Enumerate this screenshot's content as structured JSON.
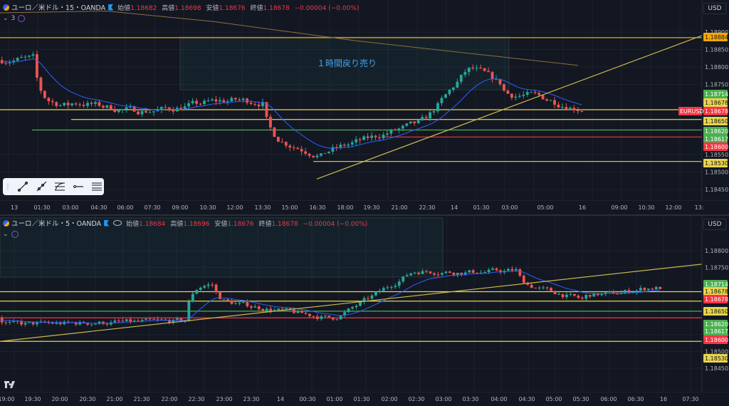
{
  "top_pane": {
    "symbol": "ユーロ／米ドル・15・OANDA",
    "ohlc": [
      {
        "label": "始値",
        "value": "1.18682"
      },
      {
        "label": "高値",
        "value": "1.18698"
      },
      {
        "label": "安値",
        "value": "1.18676"
      },
      {
        "label": "終値",
        "value": "1.18678"
      },
      {
        "label": "",
        "value": "−0.00004 (−0.00%)"
      }
    ],
    "indicator_count": "3",
    "currency": "USD",
    "annotation": "１時間戻り売り",
    "price_ticks": [
      "1.18900",
      "1.18850",
      "1.18800",
      "1.18750",
      "1.18550",
      "1.18500",
      "1.18450"
    ],
    "price_labels": [
      {
        "text": "1.18884",
        "kind": "orange"
      },
      {
        "text": "1.18714",
        "kind": "green"
      },
      {
        "text": "1.18678",
        "kind": "yellow"
      },
      {
        "text": "EURUSD",
        "kind": "red-tag"
      },
      {
        "text": "1.18678",
        "kind": "red"
      },
      {
        "text": "1.18650",
        "kind": "yellow"
      },
      {
        "text": "1.18620",
        "kind": "green"
      },
      {
        "text": "1.18617",
        "kind": "green"
      },
      {
        "text": "1.18600",
        "kind": "red"
      },
      {
        "text": "1.18530",
        "kind": "yellow"
      }
    ],
    "time_ticks": [
      "13",
      "01:30",
      "03:00",
      "04:30",
      "06:00",
      "07:30",
      "09:00",
      "10:30",
      "12:00",
      "13:30",
      "15:00",
      "16:30",
      "18:00",
      "19:30",
      "21:00",
      "22:30",
      "14",
      "01:30",
      "03:00",
      "05:00",
      "16",
      "09:00",
      "10:30",
      "12:00",
      "13:"
    ]
  },
  "bottom_pane": {
    "symbol": "ユーロ／米ドル・5・OANDA",
    "ohlc": [
      {
        "label": "始値",
        "value": "1.18684"
      },
      {
        "label": "高値",
        "value": "1.18696"
      },
      {
        "label": "安値",
        "value": "1.18676"
      },
      {
        "label": "終値",
        "value": "1.18678"
      },
      {
        "label": "",
        "value": "−0.00004 (−0.00%)"
      }
    ],
    "currency": "USD",
    "price_ticks": [
      "1.18800",
      "1.18750",
      "1.18550",
      "1.18500",
      "1.18450"
    ],
    "price_labels": [
      {
        "text": "1.18714",
        "kind": "green"
      },
      {
        "text": "1.18678",
        "kind": "yellow"
      },
      {
        "text": "1.18678",
        "kind": "red"
      },
      {
        "text": "1.18650",
        "kind": "yellow"
      },
      {
        "text": "1.18620",
        "kind": "green"
      },
      {
        "text": "1.18617",
        "kind": "green"
      },
      {
        "text": "1.18600",
        "kind": "red"
      },
      {
        "text": "1.18530",
        "kind": "yellow"
      }
    ],
    "time_ticks": [
      "19:00",
      "19:30",
      "20:00",
      "20:30",
      "21:00",
      "21:30",
      "22:00",
      "22:30",
      "23:00",
      "23:30",
      "14",
      "00:30",
      "01:00",
      "01:30",
      "02:00",
      "02:30",
      "03:00",
      "03:30",
      "04:00",
      "04:30",
      "05:00",
      "05:30",
      "06:00",
      "06:30",
      "16",
      "07:30"
    ]
  },
  "colors": {
    "up": "#26a69a",
    "down": "#ef5350",
    "yellow": "#e8d44d",
    "green": "#4caf50",
    "red": "#f23645",
    "orange": "#f7a600",
    "ma_blue": "#2962ff",
    "ma_brown": "#8d6e3f"
  },
  "drawing_toolbar": [
    "trend-line-icon",
    "ray-icon",
    "fib-retracement-icon",
    "horizontal-ray-icon",
    "parallel-lines-icon"
  ]
}
